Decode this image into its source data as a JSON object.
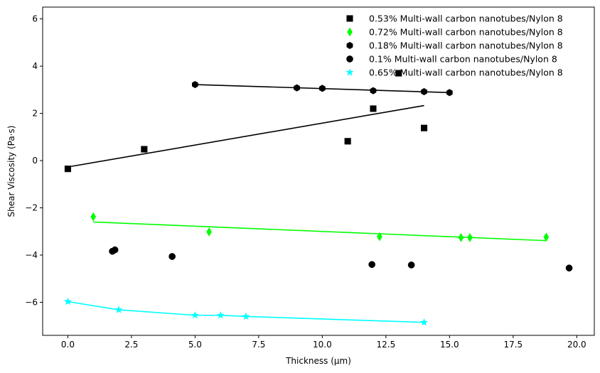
{
  "chart_data": {
    "type": "scatter",
    "xlabel": "Thickness (µm)",
    "ylabel": "Shear Viscosity (Pa·s)",
    "xlim": [
      -0.99,
      20.69
    ],
    "ylim": [
      -7.4,
      6.5
    ],
    "xticks": [
      0.0,
      2.5,
      5.0,
      7.5,
      10.0,
      12.5,
      15.0,
      17.5,
      20.0
    ],
    "xtick_labels": [
      "0.0",
      "2.5",
      "5.0",
      "7.5",
      "10.0",
      "12.5",
      "15.0",
      "17.5",
      "20.0"
    ],
    "yticks": [
      -6,
      -4,
      -2,
      0,
      2,
      4,
      6
    ],
    "ytick_labels": [
      "−6",
      "−4",
      "−2",
      "0",
      "2",
      "4",
      "6"
    ],
    "grid": false,
    "legend_position": "top-right",
    "series": [
      {
        "name": "0.53% Multi-wall carbon nanotubes/Nylon 8",
        "color": "#000000",
        "marker": "square",
        "x": [
          0,
          3,
          11,
          12,
          13,
          14
        ],
        "y": [
          -0.35,
          0.48,
          0.82,
          2.2,
          3.7,
          1.38
        ],
        "fit": {
          "x": [
            0,
            14
          ],
          "y": [
            -0.27,
            2.33
          ]
        }
      },
      {
        "name": "0.72% Multi-wall carbon nanotubes/Nylon 8",
        "color": "#00ff00",
        "marker": "thin_diamond",
        "x": [
          1.0,
          5.55,
          12.25,
          15.45,
          15.8,
          18.8
        ],
        "y": [
          -2.38,
          -3.02,
          -3.22,
          -3.26,
          -3.26,
          -3.24
        ],
        "fit": {
          "x": [
            1.0,
            18.8
          ],
          "y": [
            -2.6,
            -3.39
          ]
        }
      },
      {
        "name": "0.18% Multi-wall carbon nanotubes/Nylon 8",
        "color": "#000000",
        "marker": "hexagon",
        "x": [
          5,
          9,
          10,
          12,
          14,
          15
        ],
        "y": [
          3.22,
          3.08,
          3.06,
          2.96,
          2.92,
          2.88
        ],
        "fit": {
          "x": [
            5,
            15
          ],
          "y": [
            3.22,
            2.88
          ]
        }
      },
      {
        "name": "0.1% Multi-wall carbon nanotubes/Nylon 8",
        "color": "#000000",
        "marker": "circle",
        "x": [
          1.75,
          1.85,
          4.1,
          11.95,
          13.5,
          19.7
        ],
        "y": [
          -3.84,
          -3.78,
          -4.06,
          -4.4,
          -4.42,
          -4.55
        ]
      },
      {
        "name": "0.65% Multi-wall carbon nanotubes/Nylon 8",
        "color": "#00ffff",
        "marker": "star",
        "x": [
          0,
          2,
          5,
          6,
          7,
          14
        ],
        "y": [
          -5.97,
          -6.32,
          -6.55,
          -6.55,
          -6.6,
          -6.85
        ],
        "fit": {
          "x": [
            0,
            2,
            5,
            6,
            7,
            14
          ],
          "y": [
            -5.97,
            -6.32,
            -6.55,
            -6.55,
            -6.6,
            -6.85
          ]
        }
      }
    ]
  }
}
